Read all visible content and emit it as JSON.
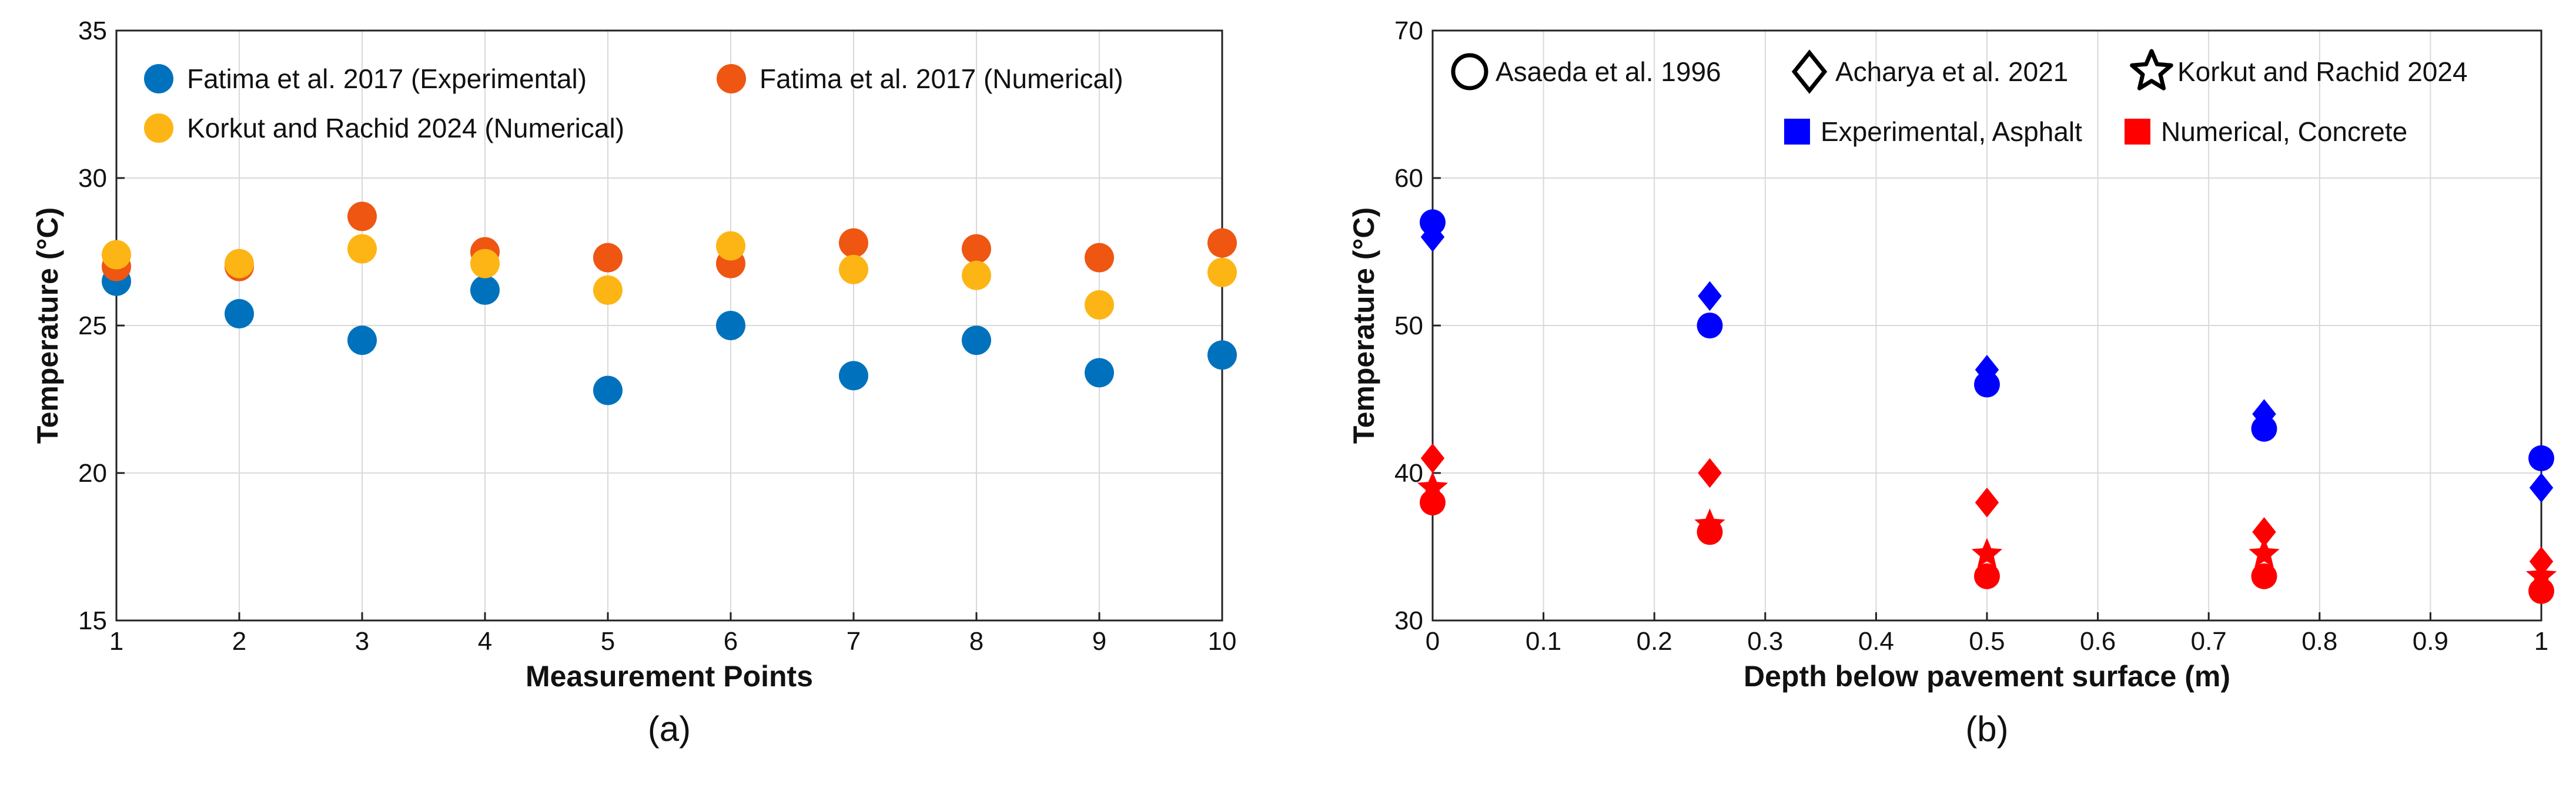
{
  "chart_data": [
    {
      "type": "scatter",
      "caption": "(a)",
      "xlabel": "Measurement Points",
      "ylabel": "Temperature (°C)",
      "xlim": [
        1,
        10
      ],
      "ylim": [
        15,
        35
      ],
      "xticks": [
        "1",
        "2",
        "3",
        "4",
        "5",
        "6",
        "7",
        "8",
        "9",
        "10"
      ],
      "yticks": [
        "15",
        "20",
        "25",
        "30",
        "35"
      ],
      "grid": true,
      "legend_location": "top",
      "x": [
        1,
        2,
        3,
        4,
        5,
        6,
        7,
        8,
        9,
        10
      ],
      "series": [
        {
          "name": "Fatima et al. 2017 (Experimental)",
          "color": "#0072BD",
          "values": [
            26.5,
            25.4,
            24.5,
            26.2,
            22.8,
            25.0,
            23.3,
            24.5,
            23.4,
            24.0
          ]
        },
        {
          "name": "Fatima et al. 2017 (Numerical)",
          "color": "#EE5612",
          "values": [
            27.0,
            27.0,
            28.7,
            27.5,
            27.3,
            27.1,
            27.8,
            27.6,
            27.3,
            27.8
          ]
        },
        {
          "name": "Korkut and Rachid 2024 (Numerical)",
          "color": "#FDB515",
          "values": [
            27.4,
            27.1,
            27.6,
            27.1,
            26.2,
            27.7,
            26.9,
            26.7,
            25.7,
            26.8
          ]
        }
      ]
    },
    {
      "type": "scatter",
      "caption": "(b)",
      "xlabel": "Depth below pavement surface (m)",
      "ylabel": "Temperature (°C)",
      "xlim": [
        0,
        1
      ],
      "ylim": [
        30,
        70
      ],
      "xticks": [
        "0",
        "0.1",
        "0.2",
        "0.3",
        "0.4",
        "0.5",
        "0.6",
        "0.7",
        "0.8",
        "0.9",
        "1"
      ],
      "yticks": [
        "30",
        "40",
        "50",
        "60",
        "70"
      ],
      "grid": true,
      "legend_location": "top",
      "marker_legend": [
        {
          "name": "Asaeda et al. 1996",
          "marker": "circle"
        },
        {
          "name": "Acharya et al. 2021",
          "marker": "diamond"
        },
        {
          "name": "Korkut and Rachid 2024",
          "marker": "star"
        }
      ],
      "color_legend": [
        {
          "name": "Experimental, Asphalt",
          "color": "#0000FF"
        },
        {
          "name": "Numerical, Concrete",
          "color": "#FF0000"
        }
      ],
      "x": [
        0,
        0.25,
        0.5,
        0.75,
        1
      ],
      "series": [
        {
          "name": "Asaeda et al. 1996 – Experimental, Asphalt",
          "marker": "circle",
          "color": "#0000FF",
          "values": [
            57,
            50,
            46,
            43,
            41
          ]
        },
        {
          "name": "Acharya et al. 2021 – Experimental, Asphalt",
          "marker": "diamond",
          "color": "#0000FF",
          "values": [
            56,
            52,
            47,
            44,
            39
          ]
        },
        {
          "name": "Asaeda et al. 1996 – Numerical, Concrete",
          "marker": "circle",
          "color": "#FF0000",
          "values": [
            38,
            36,
            33,
            33,
            32
          ]
        },
        {
          "name": "Acharya et al. 2021 – Numerical, Concrete",
          "marker": "diamond",
          "color": "#FF0000",
          "values": [
            41,
            40,
            38,
            36,
            34
          ]
        },
        {
          "name": "Korkut and Rachid 2024 – Numerical, Concrete",
          "marker": "star",
          "color": "#FF0000",
          "values": [
            39,
            36.5,
            34.5,
            34.5,
            33
          ]
        }
      ]
    }
  ]
}
